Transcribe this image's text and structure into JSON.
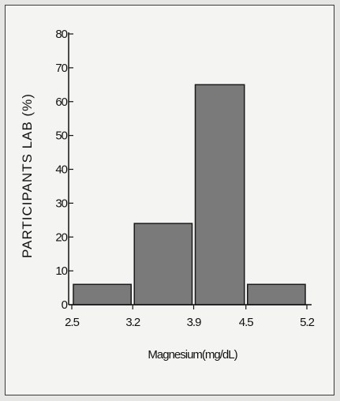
{
  "chart_data": {
    "type": "bar",
    "title": "",
    "xlabel": "Magnesium(mg/dL)",
    "ylabel": "PARTICIPANTS LAB (%)",
    "x_ticks": [
      "2.5",
      "3.2",
      "3.9",
      "4.5",
      "5.2"
    ],
    "y_ticks": [
      "0",
      "10",
      "20",
      "30",
      "40",
      "50",
      "60",
      "70",
      "80"
    ],
    "ylim": [
      0,
      80
    ],
    "bins": [
      {
        "from": 2.5,
        "to": 3.2,
        "value": 6
      },
      {
        "from": 3.2,
        "to": 3.9,
        "value": 24
      },
      {
        "from": 3.9,
        "to": 4.5,
        "value": 65
      },
      {
        "from": 4.5,
        "to": 5.2,
        "value": 6
      }
    ],
    "grid": false,
    "legend": "none",
    "bar_color": "#7a7a7a",
    "bar_border_color": "#1a1a1a"
  }
}
